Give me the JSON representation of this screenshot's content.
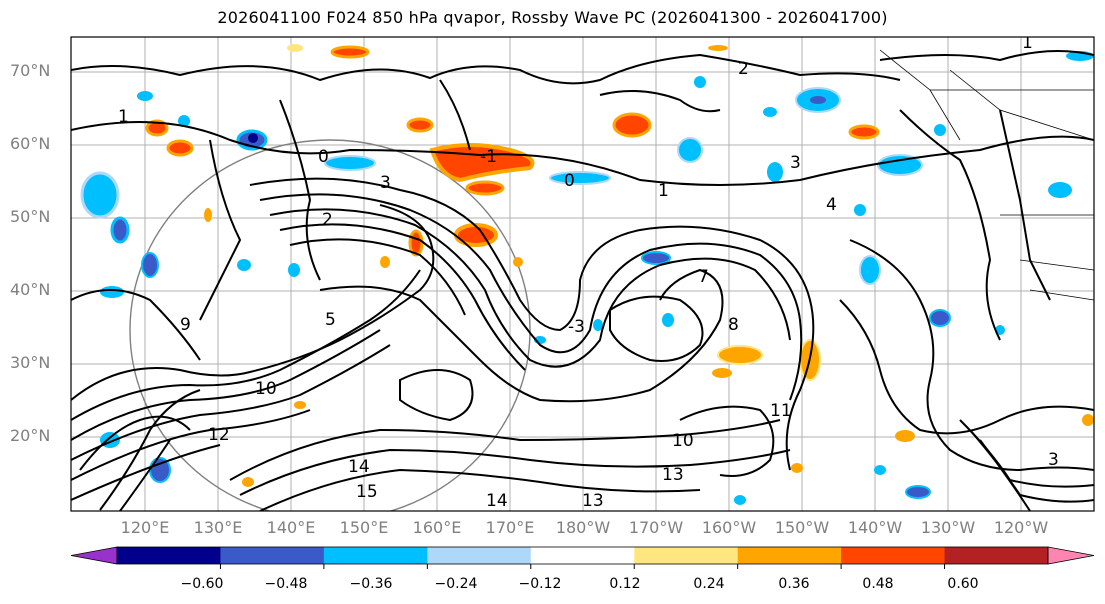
{
  "title": "2026041100 F024 850 hPa qvapor, Rossby Wave PC (2026041300 - 2026041700)",
  "lat_labels": [
    "70°N",
    "60°N",
    "50°N",
    "40°N",
    "30°N",
    "20°N"
  ],
  "lon_labels": [
    "120°E",
    "130°E",
    "140°E",
    "150°E",
    "160°E",
    "170°E",
    "180°W",
    "170°W",
    "160°W",
    "150°W",
    "140°W",
    "130°W",
    "120°W"
  ],
  "colorbar": {
    "colors": [
      "#9932cc",
      "#00008b",
      "#3a5ac8",
      "#00bfff",
      "#add8f9",
      "#ffffff",
      "#ffe680",
      "#ffa500",
      "#ff4500",
      "#b22222",
      "#ff85b0"
    ],
    "tick_labels": [
      "−0.60",
      "−0.48",
      "−0.36",
      "−0.24",
      "−0.12",
      "0.12",
      "0.24",
      "0.36",
      "0.48",
      "0.60"
    ]
  },
  "contour_labels": [
    "1",
    "0",
    "1",
    "-1",
    "0",
    "1",
    "2",
    "3",
    "3",
    "4",
    "5",
    "7",
    "8",
    "9",
    "10",
    "10",
    "11",
    "12",
    "13",
    "13",
    "14",
    "14",
    "15",
    "3",
    "-3",
    "2"
  ]
}
